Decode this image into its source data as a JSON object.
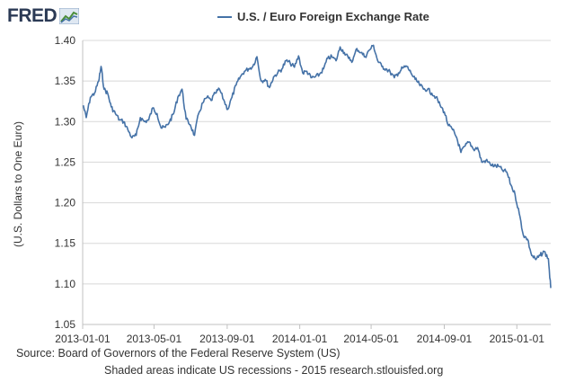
{
  "header": {
    "logo_text": "FRED",
    "logo_icon": "chart-line-icon"
  },
  "chart_data": {
    "type": "line",
    "legend": "U.S. / Euro Foreign Exchange Rate",
    "xlabel": "",
    "ylabel": "(U.S. Dollars to One Euro)",
    "ylim": [
      1.05,
      1.4
    ],
    "yticks": [
      "1.05",
      "1.10",
      "1.15",
      "1.20",
      "1.25",
      "1.30",
      "1.35",
      "1.40"
    ],
    "xticks": [
      "2013-01-01",
      "2013-05-01",
      "2013-09-01",
      "2014-01-01",
      "2014-05-01",
      "2014-09-01",
      "2015-01-01"
    ],
    "xlim": [
      "2013-01-01",
      "2015-02-27"
    ],
    "grid": true,
    "line_color": "#4572a7",
    "series": [
      {
        "name": "U.S. / Euro Foreign Exchange Rate",
        "x": [
          "2013-01-02",
          "2013-01-07",
          "2013-01-14",
          "2013-01-21",
          "2013-01-28",
          "2013-02-01",
          "2013-02-06",
          "2013-02-12",
          "2013-02-18",
          "2013-02-25",
          "2013-03-04",
          "2013-03-11",
          "2013-03-18",
          "2013-03-25",
          "2013-04-01",
          "2013-04-08",
          "2013-04-15",
          "2013-04-22",
          "2013-04-29",
          "2013-05-06",
          "2013-05-13",
          "2013-05-20",
          "2013-05-27",
          "2013-06-03",
          "2013-06-10",
          "2013-06-17",
          "2013-06-24",
          "2013-07-01",
          "2013-07-08",
          "2013-07-15",
          "2013-07-22",
          "2013-07-29",
          "2013-08-05",
          "2013-08-12",
          "2013-08-19",
          "2013-08-26",
          "2013-09-02",
          "2013-09-09",
          "2013-09-16",
          "2013-09-23",
          "2013-09-30",
          "2013-10-07",
          "2013-10-14",
          "2013-10-21",
          "2013-10-28",
          "2013-11-04",
          "2013-11-11",
          "2013-11-18",
          "2013-11-25",
          "2013-12-02",
          "2013-12-09",
          "2013-12-16",
          "2013-12-23",
          "2013-12-30",
          "2014-01-06",
          "2014-01-13",
          "2014-01-20",
          "2014-01-27",
          "2014-02-03",
          "2014-02-10",
          "2014-02-17",
          "2014-02-24",
          "2014-03-03",
          "2014-03-10",
          "2014-03-17",
          "2014-03-24",
          "2014-03-31",
          "2014-04-07",
          "2014-04-14",
          "2014-04-21",
          "2014-04-28",
          "2014-05-05",
          "2014-05-12",
          "2014-05-19",
          "2014-05-26",
          "2014-06-02",
          "2014-06-09",
          "2014-06-16",
          "2014-06-23",
          "2014-06-30",
          "2014-07-07",
          "2014-07-14",
          "2014-07-21",
          "2014-07-28",
          "2014-08-04",
          "2014-08-11",
          "2014-08-18",
          "2014-08-25",
          "2014-09-01",
          "2014-09-08",
          "2014-09-15",
          "2014-09-22",
          "2014-09-29",
          "2014-10-06",
          "2014-10-13",
          "2014-10-20",
          "2014-10-27",
          "2014-11-03",
          "2014-11-10",
          "2014-11-17",
          "2014-11-24",
          "2014-12-01",
          "2014-12-08",
          "2014-12-15",
          "2014-12-22",
          "2014-12-29",
          "2015-01-05",
          "2015-01-12",
          "2015-01-19",
          "2015-01-26",
          "2015-02-02",
          "2015-02-09",
          "2015-02-16",
          "2015-02-23",
          "2015-02-27"
        ],
        "values": [
          1.32,
          1.305,
          1.33,
          1.335,
          1.35,
          1.368,
          1.34,
          1.335,
          1.318,
          1.31,
          1.302,
          1.3,
          1.29,
          1.28,
          1.283,
          1.305,
          1.3,
          1.302,
          1.317,
          1.31,
          1.292,
          1.293,
          1.3,
          1.31,
          1.33,
          1.34,
          1.303,
          1.296,
          1.283,
          1.31,
          1.323,
          1.33,
          1.326,
          1.335,
          1.34,
          1.327,
          1.315,
          1.33,
          1.345,
          1.355,
          1.362,
          1.365,
          1.368,
          1.38,
          1.35,
          1.352,
          1.342,
          1.355,
          1.36,
          1.365,
          1.375,
          1.372,
          1.367,
          1.381,
          1.36,
          1.362,
          1.354,
          1.355,
          1.358,
          1.365,
          1.378,
          1.38,
          1.375,
          1.392,
          1.385,
          1.378,
          1.375,
          1.39,
          1.385,
          1.38,
          1.388,
          1.394,
          1.375,
          1.368,
          1.365,
          1.361,
          1.354,
          1.36,
          1.366,
          1.368,
          1.36,
          1.352,
          1.346,
          1.34,
          1.34,
          1.335,
          1.33,
          1.32,
          1.312,
          1.295,
          1.29,
          1.28,
          1.262,
          1.27,
          1.275,
          1.266,
          1.268,
          1.25,
          1.252,
          1.248,
          1.245,
          1.245,
          1.24,
          1.238,
          1.222,
          1.21,
          1.187,
          1.16,
          1.155,
          1.135,
          1.13,
          1.135,
          1.14,
          1.131,
          1.095
        ]
      }
    ]
  },
  "footer": {
    "source": "Source: Board of Governors of the Federal Reserve System (US)",
    "note": "Shaded areas indicate US recessions - 2015 research.stlouisfed.org"
  }
}
